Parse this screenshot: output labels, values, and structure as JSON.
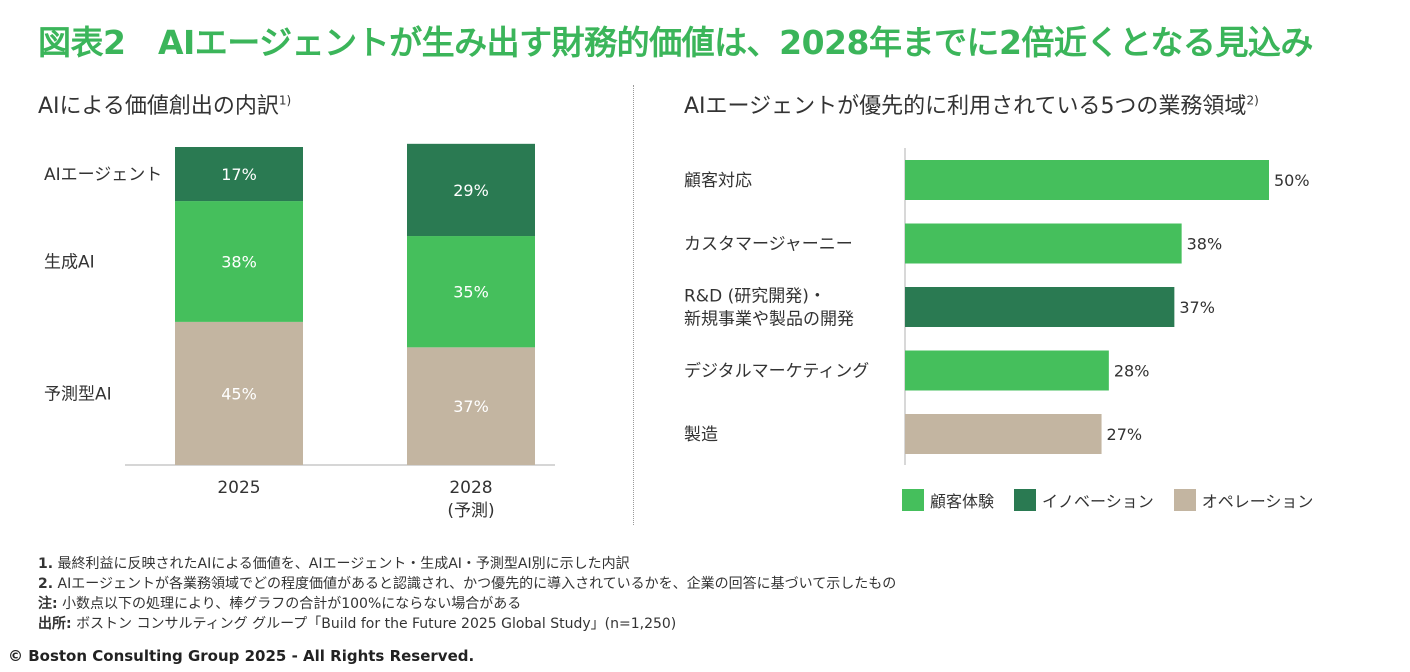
{
  "title": "図表2　AIエージェントが生み出す財務的価値は、2028年までに2倍近くとなる見込み",
  "colors": {
    "light_green": "#45bf5c",
    "dark_green": "#2a7a52",
    "tan": "#c3b5a1",
    "title_green": "#3bb55a"
  },
  "chart_data": [
    {
      "type": "bar",
      "stacked": true,
      "title": "AIによる価値創出の内訳",
      "title_sup": "1)",
      "categories": [
        "2025",
        "2028\n(予測)"
      ],
      "series": [
        {
          "name": "予測型AI",
          "color": "#c3b5a1",
          "values": [
            45,
            37
          ],
          "labels": [
            "45%",
            "37%"
          ]
        },
        {
          "name": "生成AI",
          "color": "#45bf5c",
          "values": [
            38,
            35
          ],
          "labels": [
            "38%",
            "35%"
          ]
        },
        {
          "name": "AIエージェント",
          "color": "#2a7a52",
          "values": [
            17,
            29
          ],
          "labels": [
            "17%",
            "29%"
          ]
        }
      ]
    },
    {
      "type": "bar",
      "orientation": "horizontal",
      "title": "AIエージェントが優先的に利用されている5つの業務領域",
      "title_sup": "2)",
      "categories": [
        "顧客対応",
        "カスタマージャーニー",
        "R&D (研究開発)・\n新規事業や製品の開発",
        "デジタルマーケティング",
        "製造"
      ],
      "values": [
        50,
        38,
        37,
        28,
        27
      ],
      "labels": [
        "50%",
        "38%",
        "37%",
        "28%",
        "27%"
      ],
      "group": [
        "顧客体験",
        "顧客体験",
        "イノベーション",
        "顧客体験",
        "オペレーション"
      ],
      "legend": [
        {
          "label": "顧客体験",
          "color": "#45bf5c"
        },
        {
          "label": "イノベーション",
          "color": "#2a7a52"
        },
        {
          "label": "オペレーション",
          "color": "#c3b5a1"
        }
      ],
      "legend_position": "bottom"
    }
  ],
  "notes": [
    {
      "label": "1.",
      "text": "最終利益に反映されたAIによる価値を、AIエージェント・生成AI・予測型AI別に示した内訳"
    },
    {
      "label": "2.",
      "text": "AIエージェントが各業務領域でどの程度価値があると認識され、かつ優先的に導入されているかを、企業の回答に基づいて示したもの"
    },
    {
      "label": "注:",
      "text": "小数点以下の処理により、棒グラフの合計が100%にならない場合がある"
    },
    {
      "label": "出所:",
      "text": "ボストン コンサルティング グループ「Build for the Future 2025 Global Study」(n=1,250)"
    }
  ],
  "copyright": "© Boston Consulting Group 2025 - All Rights Reserved."
}
